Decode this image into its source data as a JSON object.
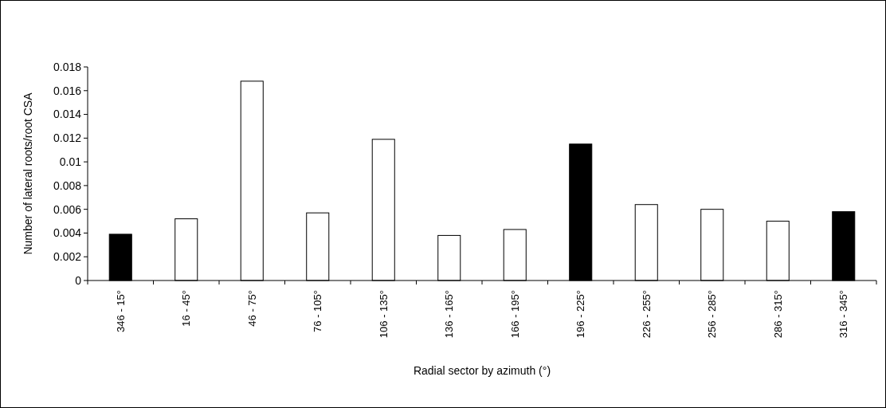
{
  "chart_data": {
    "type": "bar",
    "xlabel": "Radial sector by azimuth (°)",
    "ylabel": "Number of lateral roots/root CSA",
    "categories": [
      "346 - 15°",
      "16 - 45°",
      "46 - 75°",
      "76 - 105°",
      "106 - 135°",
      "136 - 165°",
      "166 - 195°",
      "196 - 225°",
      "226 - 255°",
      "256 - 285°",
      "286 - 315°",
      "316 - 345°"
    ],
    "values": [
      0.0039,
      0.0052,
      0.0168,
      0.0057,
      0.0119,
      0.0038,
      0.0043,
      0.0115,
      0.0064,
      0.006,
      0.005,
      0.0058
    ],
    "colors": [
      "#000000",
      "#ffffff",
      "#ffffff",
      "#ffffff",
      "#ffffff",
      "#ffffff",
      "#ffffff",
      "#000000",
      "#ffffff",
      "#ffffff",
      "#ffffff",
      "#000000"
    ],
    "ylim": [
      0,
      0.018
    ],
    "yticks": [
      0,
      0.002,
      0.004,
      0.006,
      0.008,
      0.01,
      0.012,
      0.014,
      0.016,
      0.018
    ]
  }
}
